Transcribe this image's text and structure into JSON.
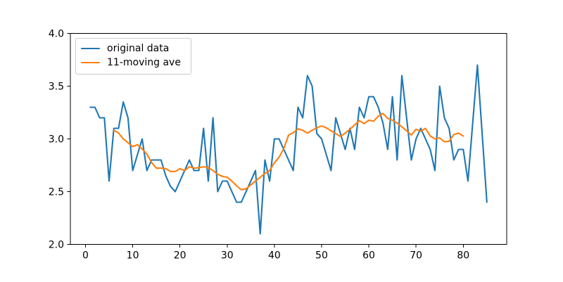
{
  "figure": {
    "background": "#ffffff"
  },
  "legend": {
    "items": [
      {
        "label": "original data",
        "color": "#1f77b4"
      },
      {
        "label": "11-moving ave",
        "color": "#ff7f0e"
      }
    ]
  },
  "chart_data": {
    "type": "line",
    "title": "",
    "xlabel": "",
    "ylabel": "",
    "grid": false,
    "legend_position": "upper left",
    "xlim": [
      -3.2,
      89.2
    ],
    "ylim": [
      2.0,
      4.0
    ],
    "xticks": [
      0,
      10,
      20,
      30,
      40,
      50,
      60,
      70,
      80
    ],
    "xtick_labels": [
      "0",
      "10",
      "20",
      "30",
      "40",
      "50",
      "60",
      "70",
      "80"
    ],
    "yticks": [
      2.0,
      2.5,
      3.0,
      3.5,
      4.0
    ],
    "ytick_labels": [
      "2.0",
      "2.5",
      "3.0",
      "3.5",
      "4.0"
    ],
    "series": [
      {
        "name": "original data",
        "color": "#1f77b4",
        "x": [
          1,
          2,
          3,
          4,
          5,
          6,
          7,
          8,
          9,
          10,
          11,
          12,
          13,
          14,
          15,
          16,
          17,
          18,
          19,
          20,
          21,
          22,
          23,
          24,
          25,
          26,
          27,
          28,
          29,
          30,
          31,
          32,
          33,
          34,
          35,
          36,
          37,
          38,
          39,
          40,
          41,
          42,
          43,
          44,
          45,
          46,
          47,
          48,
          49,
          50,
          51,
          52,
          53,
          54,
          55,
          56,
          57,
          58,
          59,
          60,
          61,
          62,
          63,
          64,
          65,
          66,
          67,
          68,
          69,
          70,
          71,
          72,
          73,
          74,
          75,
          76,
          77,
          78,
          79,
          80,
          81,
          82,
          83,
          84,
          85
        ],
        "values": [
          3.3,
          3.3,
          3.2,
          3.2,
          2.6,
          3.1,
          3.1,
          3.35,
          3.2,
          2.7,
          2.85,
          3.0,
          2.7,
          2.8,
          2.8,
          2.8,
          2.65,
          2.55,
          2.5,
          2.6,
          2.7,
          2.8,
          2.7,
          2.7,
          3.1,
          2.6,
          3.2,
          2.5,
          2.6,
          2.6,
          2.5,
          2.4,
          2.4,
          2.5,
          2.6,
          2.7,
          2.1,
          2.8,
          2.6,
          3.0,
          3.0,
          2.9,
          2.8,
          2.7,
          3.3,
          3.2,
          3.6,
          3.5,
          3.05,
          3.0,
          2.85,
          2.7,
          3.2,
          3.05,
          2.9,
          3.1,
          2.9,
          3.3,
          3.2,
          3.4,
          3.4,
          3.3,
          3.15,
          2.9,
          3.4,
          2.8,
          3.6,
          3.2,
          2.8,
          3.0,
          3.1,
          3.0,
          2.9,
          2.7,
          3.5,
          3.2,
          3.1,
          2.8,
          2.9,
          2.9,
          2.6,
          3.15,
          3.7,
          3.05,
          2.4
        ]
      },
      {
        "name": "11-moving ave",
        "color": "#ff7f0e",
        "x": [
          6,
          7,
          8,
          9,
          10,
          11,
          12,
          13,
          14,
          15,
          16,
          17,
          18,
          19,
          20,
          21,
          22,
          23,
          24,
          25,
          26,
          27,
          28,
          29,
          30,
          31,
          32,
          33,
          34,
          35,
          36,
          37,
          38,
          39,
          40,
          41,
          42,
          43,
          44,
          45,
          46,
          47,
          48,
          49,
          50,
          51,
          52,
          53,
          54,
          55,
          56,
          57,
          58,
          59,
          60,
          61,
          62,
          63,
          64,
          65,
          66,
          67,
          68,
          69,
          70,
          71,
          72,
          73,
          74,
          75,
          76,
          77,
          78,
          79,
          80
        ],
        "values": [
          3.082,
          3.055,
          3.0,
          2.964,
          2.927,
          2.945,
          2.905,
          2.855,
          2.777,
          2.723,
          2.723,
          2.718,
          2.691,
          2.691,
          2.718,
          2.7,
          2.736,
          2.723,
          2.727,
          2.736,
          2.727,
          2.7,
          2.664,
          2.645,
          2.636,
          2.6,
          2.555,
          2.518,
          2.527,
          2.564,
          2.6,
          2.636,
          2.673,
          2.7,
          2.773,
          2.827,
          2.909,
          3.036,
          3.059,
          3.095,
          3.082,
          3.055,
          3.082,
          3.105,
          3.123,
          3.105,
          3.077,
          3.05,
          3.023,
          3.055,
          3.091,
          3.132,
          3.173,
          3.145,
          3.177,
          3.168,
          3.214,
          3.241,
          3.195,
          3.177,
          3.15,
          3.114,
          3.077,
          3.036,
          3.091,
          3.073,
          3.1,
          3.027,
          3.0,
          3.009,
          2.973,
          2.977,
          3.041,
          3.055,
          3.027
        ]
      }
    ]
  }
}
